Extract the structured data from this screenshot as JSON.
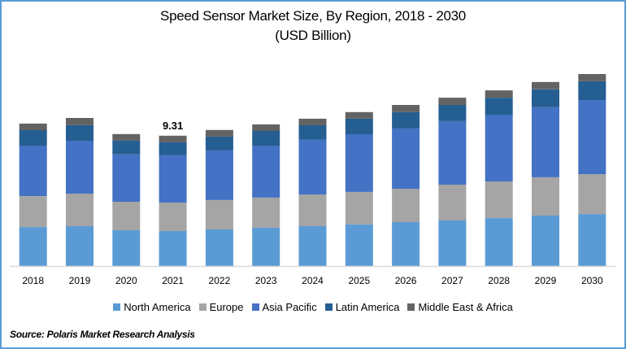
{
  "chart_data": {
    "type": "bar",
    "stacked": true,
    "title": "Speed Sensor Market Size, By Region, 2018 - 2030",
    "subtitle": "(USD Billion)",
    "xlabel": "",
    "ylabel": "",
    "grid": false,
    "legend_position": "bottom",
    "categories": [
      "2018",
      "2019",
      "2020",
      "2021",
      "2022",
      "2023",
      "2024",
      "2025",
      "2026",
      "2027",
      "2028",
      "2029",
      "2030"
    ],
    "series": [
      {
        "name": "North America",
        "color": "#5b9bd5",
        "values": [
          2.79,
          2.85,
          2.56,
          2.5,
          2.62,
          2.74,
          2.85,
          2.97,
          3.14,
          3.26,
          3.43,
          3.61,
          3.72
        ]
      },
      {
        "name": "Europe",
        "color": "#a5a5a5",
        "values": [
          2.21,
          2.33,
          2.04,
          2.04,
          2.1,
          2.15,
          2.27,
          2.33,
          2.39,
          2.56,
          2.62,
          2.74,
          2.85
        ]
      },
      {
        "name": "Asia Pacific",
        "color": "#4472c4",
        "values": [
          3.61,
          3.78,
          3.38,
          3.38,
          3.55,
          3.72,
          3.9,
          4.13,
          4.31,
          4.54,
          4.77,
          5.01,
          5.3
        ]
      },
      {
        "name": "Latin America",
        "color": "#255e91",
        "values": [
          1.11,
          1.11,
          0.99,
          0.93,
          0.99,
          1.05,
          1.05,
          1.11,
          1.16,
          1.16,
          1.22,
          1.28,
          1.34
        ]
      },
      {
        "name": "Middle East & Africa",
        "color": "#636363",
        "values": [
          0.47,
          0.52,
          0.47,
          0.47,
          0.47,
          0.47,
          0.47,
          0.47,
          0.52,
          0.52,
          0.52,
          0.52,
          0.52
        ]
      }
    ],
    "ylim": [
      0,
      15
    ],
    "annotations": [
      {
        "category": "2021",
        "text": "9.31"
      }
    ]
  },
  "source": "Source: Polaris  Market Research Analysis",
  "axis_color": "#d9d9d9",
  "frame_color": "#5b9bd5"
}
